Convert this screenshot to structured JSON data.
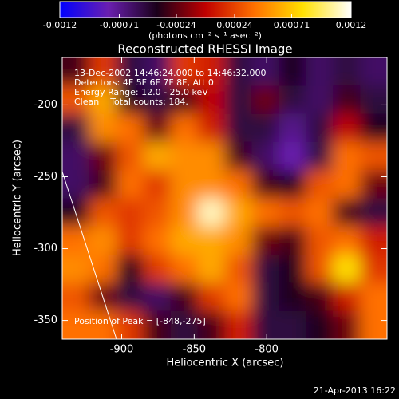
{
  "chart_data": {
    "type": "image",
    "title": "Reconstructed RHESSI Image",
    "xlabel": "Heliocentric X (arcsec)",
    "ylabel": "Heliocentric Y (arcsec)",
    "colorbar_label": "(photons cm⁻² s⁻¹ asec⁻²)",
    "annotations": [
      "13-Dec-2002 14:46:24.000 to 14:46:32.000",
      "Detectors: 4F 5F 6F 7F 8F, Att 0",
      "Energy Range: 12.0 - 25.0 keV",
      "Clean    Total counts: 184."
    ],
    "peak_label": "Position of Peak = [-848,-275]",
    "footer": "21-Apr-2013 16:22",
    "xlim": [
      -941,
      -717
    ],
    "ylim": [
      -363,
      -167
    ],
    "xticks": [
      -900,
      -850,
      -800
    ],
    "yticks": [
      -350,
      -300,
      -250,
      -200
    ],
    "clim": [
      -0.0012,
      0.0012
    ],
    "cticks": [
      -0.0012,
      -0.00071,
      -0.00024,
      0.00024,
      0.00071,
      0.0012
    ],
    "colormap": [
      "#0000ff",
      "#6a1fb0",
      "#1a001a",
      "#c00000",
      "#ff7000",
      "#ffe000",
      "#ffffff"
    ],
    "z": [
      [
        -0.0003,
        0.0002,
        -0.0005,
        -0.0006,
        0.0002,
        0.0001,
        -0.0005,
        -0.0006,
        -0.0004,
        -0.0006,
        -0.0005,
        -0.0006
      ],
      [
        0.0003,
        0.0006,
        -0.0004,
        -0.0005,
        -0.0003,
        0.0,
        -0.0005,
        -0.0002,
        -0.0005,
        -0.0006,
        -0.0003,
        -0.0005
      ],
      [
        -0.0005,
        0.0005,
        0.0004,
        -0.0002,
        0.0004,
        0.0001,
        -0.0005,
        -0.0005,
        -0.0007,
        -0.0005,
        0.0,
        -0.0004
      ],
      [
        -0.0006,
        -0.0002,
        0.0003,
        0.0006,
        0.0005,
        0.0005,
        -0.0003,
        -0.0006,
        -0.0008,
        -0.0005,
        0.0004,
        0.0003
      ],
      [
        -0.0006,
        -0.0003,
        0.0004,
        0.0002,
        0.0005,
        0.0005,
        0.0004,
        -0.0003,
        -0.0004,
        0.0003,
        0.0004,
        -0.0002
      ],
      [
        -0.0004,
        0.0003,
        0.0002,
        0.0003,
        0.0005,
        0.0011,
        0.0006,
        0.0004,
        0.0003,
        0.0004,
        -0.0003,
        -0.0005
      ],
      [
        0.0004,
        0.0005,
        0.0002,
        0.0004,
        0.0006,
        0.0006,
        0.0005,
        -0.0002,
        -0.0003,
        0.0003,
        0.0004,
        0.0001
      ],
      [
        0.0005,
        0.0004,
        -0.0004,
        0.0002,
        0.0004,
        0.0006,
        0.0003,
        -0.0005,
        -0.0004,
        0.0003,
        0.0008,
        0.0002
      ],
      [
        0.0003,
        -0.0002,
        -0.0005,
        -0.0006,
        -0.0003,
        0.0002,
        0.0004,
        -0.0005,
        -0.0004,
        -0.0003,
        0.0001,
        0.0004
      ],
      [
        0.0004,
        0.0004,
        0.0002,
        -0.0003,
        -0.0005,
        -0.0003,
        0.0001,
        -0.0005,
        -0.0005,
        -0.0004,
        -0.0002,
        0.0004
      ]
    ]
  }
}
